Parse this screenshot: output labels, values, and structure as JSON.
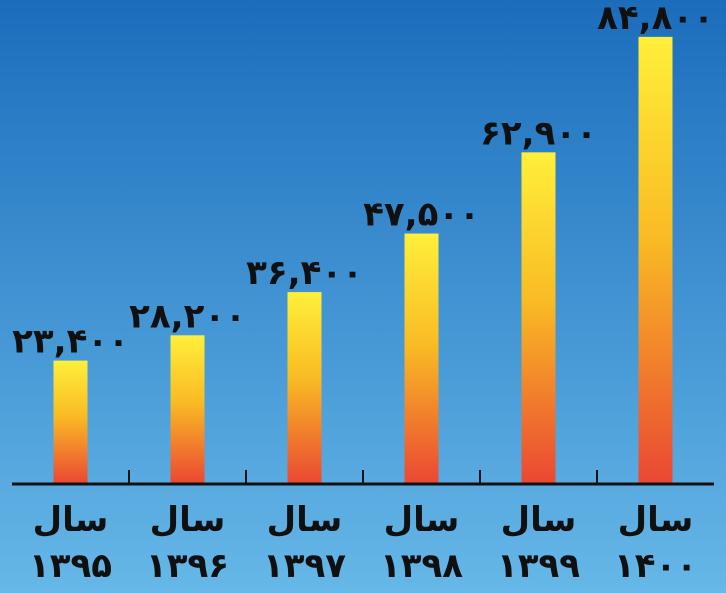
{
  "chart_data": {
    "type": "bar",
    "categories": [
      [
        "سال",
        "۱۳۹۵"
      ],
      [
        "سال",
        "۱۳۹۶"
      ],
      [
        "سال",
        "۱۳۹۷"
      ],
      [
        "سال",
        "۱۳۹۸"
      ],
      [
        "سال",
        "۱۳۹۹"
      ],
      [
        "سال",
        "۱۴۰۰"
      ]
    ],
    "values": [
      23.4,
      28.2,
      36.4,
      47.5,
      62.9,
      84.8
    ],
    "value_labels": [
      "۲۳,۴۰۰",
      "۲۸,۲۰۰",
      "۳۶,۴۰۰",
      "۴۷,۵۰۰",
      "۶۲,۹۰۰",
      "۸۴,۸۰۰"
    ],
    "title": "",
    "xlabel": "",
    "ylabel": "",
    "ylim": [
      0,
      88
    ],
    "grid": false,
    "legend": "none"
  },
  "colors": {
    "background_top": "#1b6dbc",
    "background_bottom": "#66b8e8",
    "bar_top": "#ffef3a",
    "bar_middle": "#f9bb24",
    "bar_bottom": "#ea4733",
    "axis": "#111111",
    "text": "#101010"
  }
}
